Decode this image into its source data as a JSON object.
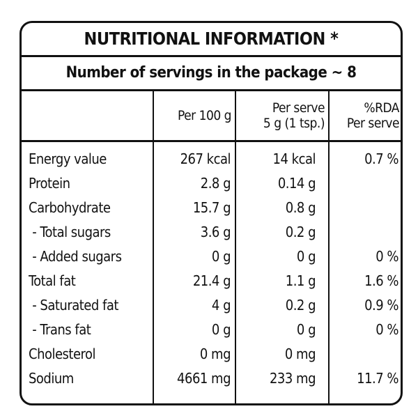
{
  "title": "NUTRITIONAL INFORMATION *",
  "servings": "Number of servings in the package ~ 8",
  "columns": [
    {
      "line1": "",
      "line2": ""
    },
    {
      "line1": "",
      "line2": "Per 100 g"
    },
    {
      "line1": "Per serve",
      "line2": "5 g (1 tsp.)"
    },
    {
      "line1": "%RDA",
      "line2": "Per serve"
    }
  ],
  "rows": [
    {
      "name": "Energy value",
      "per100": "267 kcal",
      "serve": "14 kcal",
      "rda": "0.7 %"
    },
    {
      "name": "Protein",
      "per100": "2.8 g",
      "serve": "0.14 g",
      "rda": ""
    },
    {
      "name": "Carbohydrate",
      "per100": "15.7 g",
      "serve": "0.8 g",
      "rda": ""
    },
    {
      "name": " - Total sugars",
      "per100": "3.6 g",
      "serve": "0.2 g",
      "rda": ""
    },
    {
      "name": " - Added sugars",
      "per100": "0 g",
      "serve": "0 g",
      "rda": "0 %"
    },
    {
      "name": "Total fat",
      "per100": "21.4 g",
      "serve": "1.1 g",
      "rda": "1.6 %"
    },
    {
      "name": " - Saturated fat",
      "per100": "4 g",
      "serve": "0.2 g",
      "rda": "0.9 %"
    },
    {
      "name": " - Trans fat",
      "per100": "0 g",
      "serve": "0 g",
      "rda": "0 %"
    },
    {
      "name": "Cholesterol",
      "per100": "0 mg",
      "serve": "0 mg",
      "rda": ""
    },
    {
      "name": "Sodium",
      "per100": "4661 mg",
      "serve": "233 mg",
      "rda": "11.7 %"
    }
  ]
}
